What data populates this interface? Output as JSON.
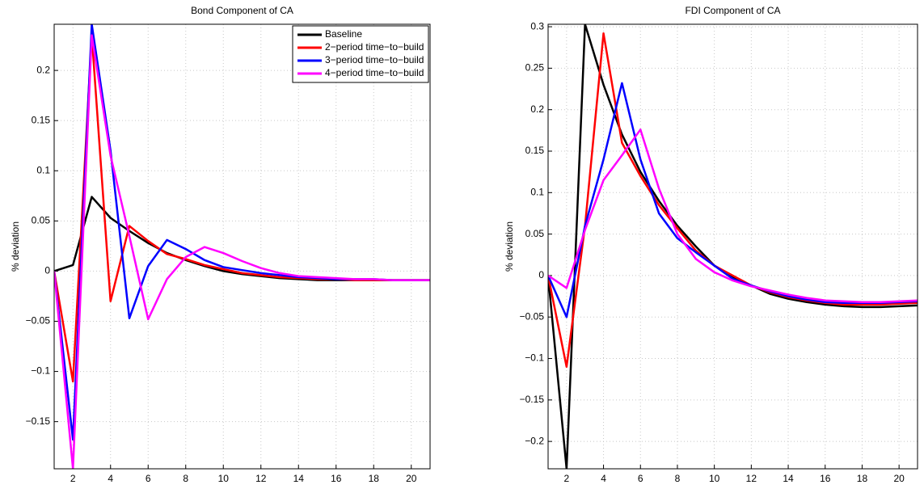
{
  "chart_data": [
    {
      "type": "line",
      "title": "Bond Component of CA",
      "ylabel": "% deviation",
      "grid": true,
      "legend": "upper right",
      "x": [
        1,
        2,
        3,
        4,
        5,
        6,
        7,
        8,
        9,
        10,
        11,
        12,
        13,
        14,
        15,
        16,
        17,
        18,
        19,
        20,
        21
      ],
      "xlim": [
        1,
        21
      ],
      "xticks": [
        2,
        4,
        6,
        8,
        10,
        12,
        14,
        16,
        18,
        20
      ],
      "ylim": [
        -0.197,
        0.246
      ],
      "yticks": [
        {
          "value": -0.15,
          "label": "−0.15"
        },
        {
          "value": -0.1,
          "label": "−0.1"
        },
        {
          "value": -0.05,
          "label": "−0.05"
        },
        0,
        0.05,
        0.1,
        0.15,
        0.2
      ],
      "series": [
        {
          "name": "Baseline",
          "color": "#000000",
          "values": [
            0,
            0.006,
            0.074,
            0.053,
            0.04,
            0.028,
            0.018,
            0.011,
            0.005,
            0.0,
            -0.003,
            -0.005,
            -0.007,
            -0.008,
            -0.009,
            -0.009,
            -0.009,
            -0.009,
            -0.009,
            -0.009,
            -0.009
          ]
        },
        {
          "name": "2−period time−to−build",
          "color": "#ff0000",
          "values": [
            0,
            -0.11,
            0.235,
            -0.03,
            0.045,
            0.03,
            0.017,
            0.012,
            0.006,
            0.002,
            -0.002,
            -0.004,
            -0.006,
            -0.007,
            -0.008,
            -0.008,
            -0.009,
            -0.009,
            -0.009,
            -0.009,
            -0.009
          ]
        },
        {
          "name": "3−period time−to−build",
          "color": "#0000ff",
          "values": [
            0,
            -0.168,
            0.246,
            0.12,
            -0.047,
            0.005,
            0.031,
            0.022,
            0.011,
            0.004,
            0.001,
            -0.002,
            -0.004,
            -0.006,
            -0.007,
            -0.008,
            -0.008,
            -0.008,
            -0.009,
            -0.009,
            -0.009
          ]
        },
        {
          "name": "4−period time−to−build",
          "color": "#ff00ff",
          "values": [
            0,
            -0.197,
            0.235,
            0.115,
            0.035,
            -0.048,
            -0.008,
            0.014,
            0.024,
            0.018,
            0.01,
            0.003,
            -0.002,
            -0.005,
            -0.006,
            -0.007,
            -0.008,
            -0.008,
            -0.009,
            -0.009,
            -0.009
          ]
        }
      ]
    },
    {
      "type": "line",
      "title": "FDI Component of CA",
      "ylabel": "% deviation",
      "grid": true,
      "x": [
        1,
        2,
        3,
        4,
        5,
        6,
        7,
        8,
        9,
        10,
        11,
        12,
        13,
        14,
        15,
        16,
        17,
        18,
        19,
        20,
        21
      ],
      "xlim": [
        1,
        21
      ],
      "xticks": [
        2,
        4,
        6,
        8,
        10,
        12,
        14,
        16,
        18,
        20
      ],
      "ylim": [
        -0.233,
        0.303
      ],
      "yticks": [
        {
          "value": -0.2,
          "label": "−0.2"
        },
        {
          "value": -0.15,
          "label": "−0.15"
        },
        {
          "value": -0.1,
          "label": "−0.1"
        },
        {
          "value": -0.05,
          "label": "−0.05"
        },
        0,
        0.05,
        0.1,
        0.15,
        0.2,
        0.25,
        0.3
      ],
      "series": [
        {
          "color": "#000000",
          "values": [
            0,
            -0.233,
            0.303,
            0.23,
            0.17,
            0.125,
            0.09,
            0.06,
            0.035,
            0.012,
            -0.002,
            -0.012,
            -0.022,
            -0.028,
            -0.032,
            -0.035,
            -0.037,
            -0.038,
            -0.038,
            -0.037,
            -0.036
          ]
        },
        {
          "color": "#ff0000",
          "values": [
            0,
            -0.11,
            0.06,
            0.292,
            0.16,
            0.12,
            0.085,
            0.057,
            0.03,
            0.012,
            0.0,
            -0.012,
            -0.02,
            -0.026,
            -0.03,
            -0.033,
            -0.035,
            -0.035,
            -0.035,
            -0.034,
            -0.033
          ]
        },
        {
          "color": "#0000ff",
          "values": [
            0,
            -0.05,
            0.06,
            0.14,
            0.232,
            0.14,
            0.075,
            0.045,
            0.028,
            0.012,
            -0.004,
            -0.012,
            -0.019,
            -0.025,
            -0.029,
            -0.032,
            -0.033,
            -0.033,
            -0.033,
            -0.032,
            -0.031
          ]
        },
        {
          "color": "#ff00ff",
          "values": [
            0,
            -0.015,
            0.055,
            0.115,
            0.145,
            0.176,
            0.105,
            0.05,
            0.02,
            0.004,
            -0.006,
            -0.013,
            -0.018,
            -0.023,
            -0.027,
            -0.03,
            -0.031,
            -0.032,
            -0.032,
            -0.031,
            -0.03
          ]
        }
      ]
    }
  ]
}
